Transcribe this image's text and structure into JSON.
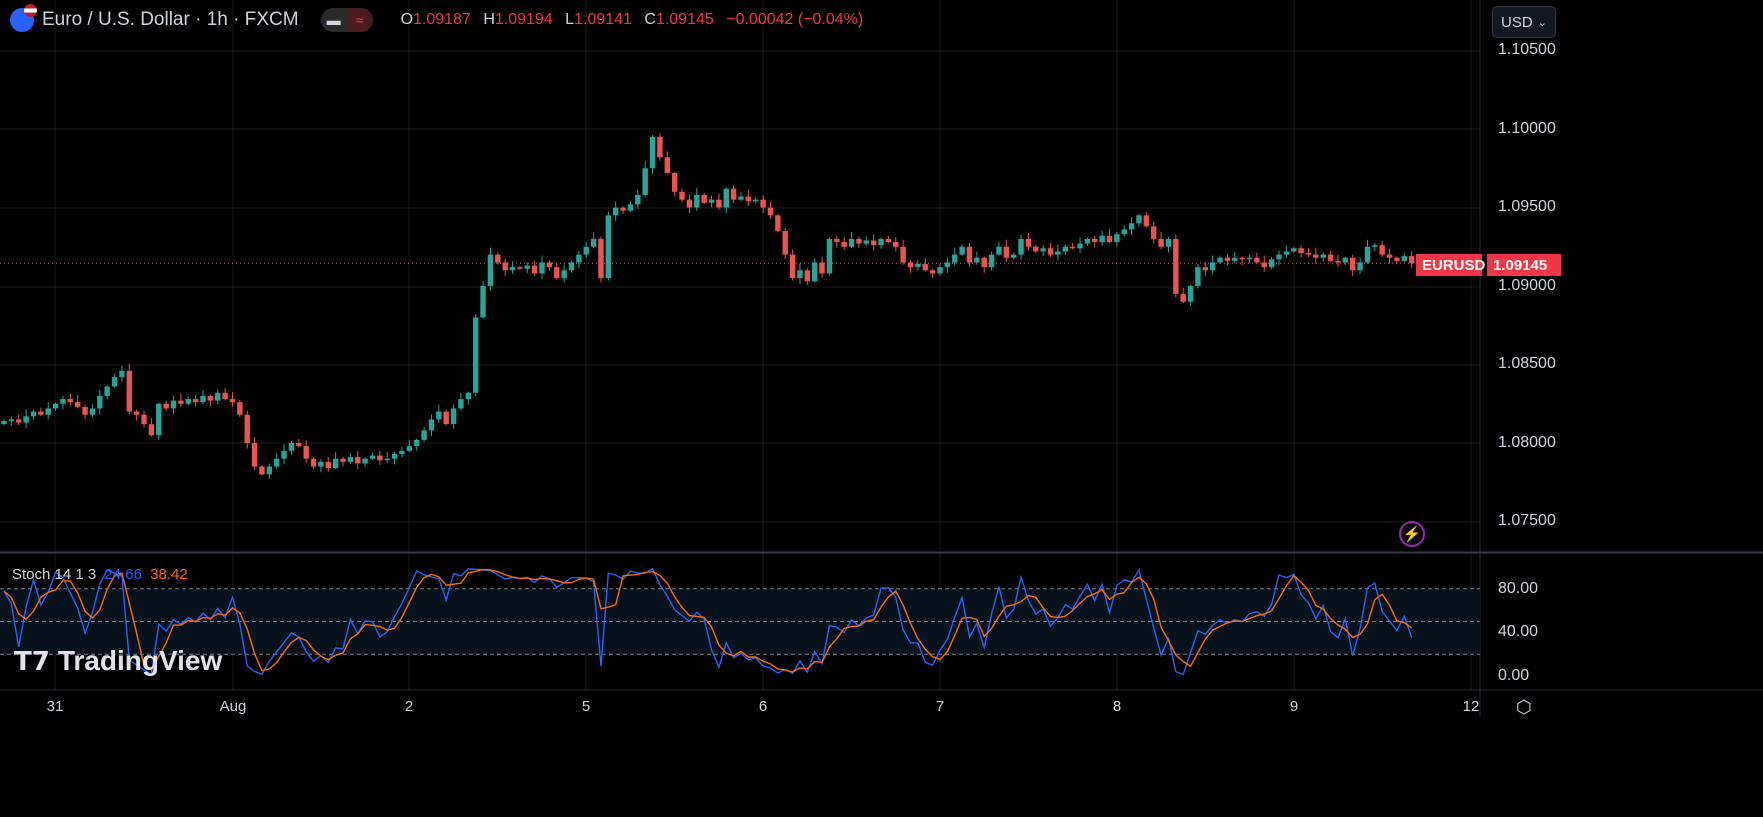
{
  "header": {
    "symbol_title": "Euro / U.S. Dollar · 1h · FXCM",
    "toggle_left_icon": "dash-icon",
    "toggle_right_glyph": "≈",
    "ohlc": [
      {
        "label": "O",
        "value": "1.09187"
      },
      {
        "label": "H",
        "value": "1.09194"
      },
      {
        "label": "L",
        "value": "1.09141"
      },
      {
        "label": "C",
        "value": "1.09145"
      }
    ],
    "change": "−0.00042 (−0.04%)"
  },
  "currency": {
    "selected": "USD"
  },
  "price_axis": [
    "1.10500",
    "1.10000",
    "1.09500",
    "1.09000",
    "1.08500",
    "1.08000",
    "1.07500"
  ],
  "last_price": {
    "symbol": "EURUSD",
    "value": "1.09145"
  },
  "stoch": {
    "label": "Stoch 14 1 3",
    "k": "24.66",
    "d": "38.42",
    "axis": [
      "80.00",
      "40.00",
      "0.00"
    ],
    "k_color": "#2962ff",
    "d_color": "#ff6d00"
  },
  "time_axis": [
    "31",
    "Aug",
    "2",
    "5",
    "6",
    "7",
    "8",
    "9",
    "12"
  ],
  "logo": "TradingView",
  "colors": {
    "up": "#26a69a",
    "down": "#ef5350"
  },
  "chart_data": {
    "type": "candlestick",
    "interval": "1h",
    "ylim": [
      1.073,
      1.107
    ],
    "closes": [
      1.0814,
      1.0815,
      1.0813,
      1.0817,
      1.082,
      1.0818,
      1.0822,
      1.0825,
      1.0828,
      1.0826,
      1.0823,
      1.0818,
      1.0822,
      1.083,
      1.0836,
      1.0842,
      1.0846,
      1.082,
      1.0818,
      1.0812,
      1.0805,
      1.0825,
      1.0822,
      1.0827,
      1.0825,
      1.0828,
      1.0826,
      1.083,
      1.0827,
      1.0832,
      1.0828,
      1.0826,
      1.0818,
      1.08,
      1.0785,
      1.078,
      1.0785,
      1.079,
      1.0795,
      1.08,
      1.0798,
      1.079,
      1.0785,
      1.0788,
      1.0784,
      1.079,
      1.0788,
      1.0791,
      1.0787,
      1.079,
      1.0792,
      1.0789,
      1.079,
      1.0793,
      1.0795,
      1.0798,
      1.0802,
      1.0808,
      1.0815,
      1.082,
      1.0812,
      1.0822,
      1.0828,
      1.0832,
      1.088,
      1.09,
      1.092,
      1.0915,
      1.091,
      1.0912,
      1.0911,
      1.0913,
      1.0908,
      1.0915,
      1.0912,
      1.0905,
      1.091,
      1.0915,
      1.092,
      1.0925,
      1.093,
      1.0905,
      1.0945,
      1.095,
      1.0948,
      1.0952,
      1.0958,
      1.0975,
      1.0995,
      1.0982,
      1.0972,
      1.096,
      1.0955,
      1.095,
      1.0958,
      1.0953,
      1.0955,
      1.095,
      1.0962,
      1.0955,
      1.0957,
      1.0954,
      1.0955,
      1.095,
      1.0945,
      1.0935,
      1.092,
      1.0905,
      1.091,
      1.0903,
      1.0915,
      1.0908,
      1.093,
      1.0928,
      1.0925,
      1.093,
      1.0927,
      1.0929,
      1.0926,
      1.093,
      1.0928,
      1.0925,
      1.0915,
      1.0912,
      1.0914,
      1.091,
      1.0908,
      1.0912,
      1.0915,
      1.092,
      1.0925,
      1.0915,
      1.0918,
      1.0912,
      1.092,
      1.0925,
      1.0918,
      1.092,
      1.093,
      1.0925,
      1.0922,
      1.0924,
      1.092,
      1.0922,
      1.0925,
      1.0924,
      1.0927,
      1.093,
      1.0928,
      1.0932,
      1.0928,
      1.0933,
      1.0936,
      1.094,
      1.0945,
      1.0938,
      1.093,
      1.0925,
      1.093,
      1.0895,
      1.089,
      1.09,
      1.0912,
      1.091,
      1.0915,
      1.0918,
      1.0916,
      1.0918,
      1.0917,
      1.0918,
      1.0915,
      1.0912,
      1.0917,
      1.092,
      1.0922,
      1.0924,
      1.0921,
      1.092,
      1.0918,
      1.092,
      1.0916,
      1.0915,
      1.0918,
      1.091,
      1.0915,
      1.0925,
      1.0926,
      1.092,
      1.0918,
      1.0916,
      1.0919,
      1.09145
    ]
  }
}
